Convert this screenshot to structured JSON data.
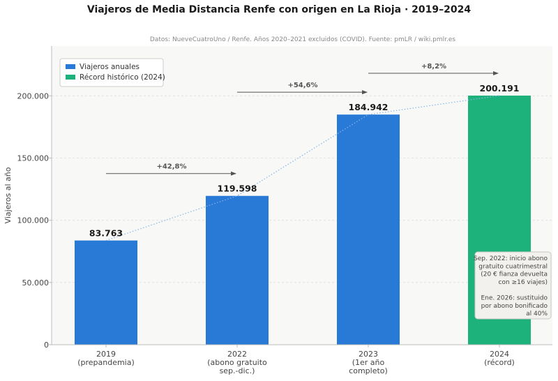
{
  "header": {
    "title": "Viajeros de Media Distancia Renfe con origen en La Rioja  ·  2019–2024",
    "subtitle": "Datos: NueveCuatroUno / Renfe. Años 2020–2021 excluidos (COVID). Fuente: pmLR / wiki.pmlr.es"
  },
  "chart_data": {
    "type": "bar",
    "title": "Viajeros de Media Distancia Renfe con origen en La Rioja  ·  2019–2024",
    "ylabel": "Viajeros al año",
    "xlabel": "",
    "ylim": [
      0,
      240000
    ],
    "yticks": [
      0,
      50000,
      100000,
      150000,
      200000
    ],
    "ytick_labels": [
      "0",
      "50.000",
      "100.000",
      "150.000",
      "200.000"
    ],
    "grid": true,
    "categories": [
      [
        "2019",
        "(prepandemia)"
      ],
      [
        "2022",
        "(abono gratuito",
        "sep.-dic.)"
      ],
      [
        "2023",
        "(1er año",
        "completo)"
      ],
      [
        "2024",
        "(récord)"
      ]
    ],
    "values": [
      83763,
      119598,
      184942,
      200191
    ],
    "value_labels": [
      "83.763",
      "119.598",
      "184.942",
      "200.191"
    ],
    "bar_series": [
      0,
      0,
      0,
      1
    ],
    "series": [
      {
        "name": "Viajeros anuales",
        "color": "#2979d6"
      },
      {
        "name": "Récord histórico (2024)",
        "color": "#1db17c"
      }
    ],
    "trend_line": {
      "style": "dotted",
      "color": "#8ab4e8"
    },
    "growth_arrows": [
      {
        "from": 0,
        "to": 1,
        "label": "+42,8%"
      },
      {
        "from": 1,
        "to": 2,
        "label": "+54,6%"
      },
      {
        "from": 2,
        "to": 3,
        "label": "+8,2%"
      }
    ],
    "legend_position": "top-left",
    "annotation": {
      "lines": [
        "Sep. 2022: inicio abono",
        "gratuito cuatrimestral",
        "(20 € fianza devuelta",
        "con ≥16 viajes)",
        "",
        "Ene. 2026: sustituido",
        "por abono bonificado",
        "al 40%"
      ]
    }
  }
}
